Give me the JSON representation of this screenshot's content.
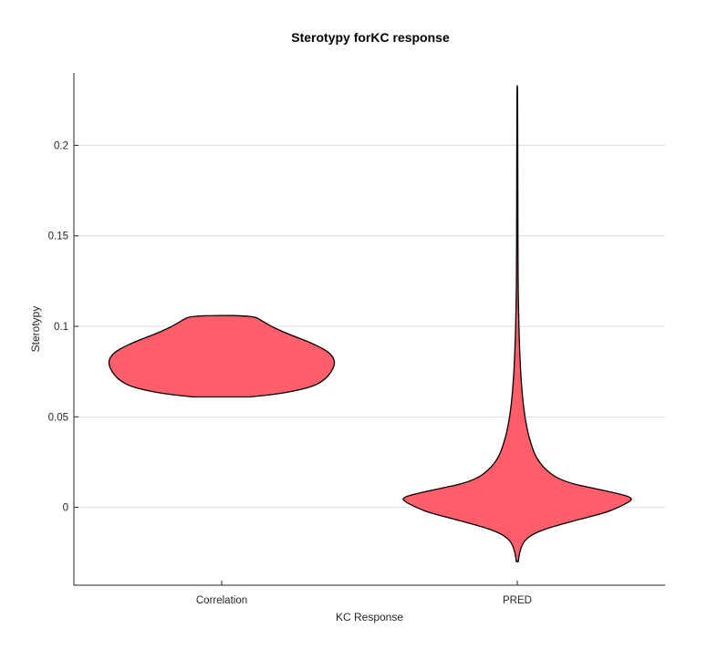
{
  "chart_data": {
    "type": "violin",
    "title": "Sterotypy forKC response",
    "xlabel": "KC Response",
    "ylabel": "Sterotypy",
    "categories": [
      "Correlation",
      "PRED"
    ],
    "ylim": [
      -0.043,
      0.24
    ],
    "yticks": [
      0,
      0.05,
      0.1,
      0.15,
      0.2
    ],
    "ytick_labels": [
      "0",
      "0.05",
      "0.1",
      "0.15",
      "0.2"
    ],
    "grid": "horizontal",
    "fill_color": "#ff5e6a",
    "violins": [
      {
        "category": "Correlation",
        "min": 0.061,
        "max": 0.106,
        "profile": [
          [
            0.061,
            0.24
          ],
          [
            0.0625,
            0.47
          ],
          [
            0.0645,
            0.65
          ],
          [
            0.067,
            0.8
          ],
          [
            0.07,
            0.88
          ],
          [
            0.073,
            0.93
          ],
          [
            0.076,
            0.96
          ],
          [
            0.079,
            0.98
          ],
          [
            0.082,
            0.975
          ],
          [
            0.085,
            0.94
          ],
          [
            0.088,
            0.87
          ],
          [
            0.091,
            0.77
          ],
          [
            0.094,
            0.65
          ],
          [
            0.097,
            0.53
          ],
          [
            0.1,
            0.43
          ],
          [
            0.103,
            0.35
          ],
          [
            0.106,
            0.27
          ]
        ]
      },
      {
        "category": "PRED",
        "min": -0.03,
        "max": 0.233,
        "profile": [
          [
            -0.03,
            0.008
          ],
          [
            -0.027,
            0.015
          ],
          [
            -0.024,
            0.025
          ],
          [
            -0.021,
            0.04
          ],
          [
            -0.018,
            0.07
          ],
          [
            -0.015,
            0.13
          ],
          [
            -0.012,
            0.24
          ],
          [
            -0.009,
            0.4
          ],
          [
            -0.006,
            0.58
          ],
          [
            -0.003,
            0.76
          ],
          [
            0.0,
            0.88
          ],
          [
            0.003,
            0.97
          ],
          [
            0.005,
            1.0
          ],
          [
            0.007,
            0.92
          ],
          [
            0.01,
            0.7
          ],
          [
            0.013,
            0.48
          ],
          [
            0.016,
            0.35
          ],
          [
            0.02,
            0.26
          ],
          [
            0.025,
            0.19
          ],
          [
            0.03,
            0.145
          ],
          [
            0.04,
            0.095
          ],
          [
            0.05,
            0.066
          ],
          [
            0.06,
            0.047
          ],
          [
            0.07,
            0.034
          ],
          [
            0.08,
            0.025
          ],
          [
            0.09,
            0.019
          ],
          [
            0.1,
            0.014
          ],
          [
            0.11,
            0.011
          ],
          [
            0.12,
            0.008
          ],
          [
            0.14,
            0.006
          ],
          [
            0.16,
            0.005
          ],
          [
            0.2,
            0.004
          ],
          [
            0.233,
            0.003
          ]
        ]
      }
    ]
  }
}
